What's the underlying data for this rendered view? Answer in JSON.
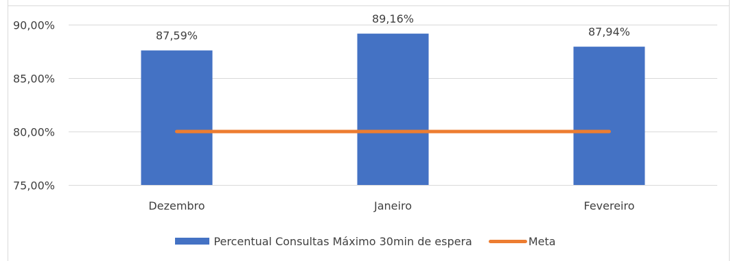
{
  "chart_data": {
    "type": "bar",
    "title": "",
    "xlabel": "",
    "ylabel": "",
    "categories": [
      "Dezembro",
      "Janeiro",
      "Fevereiro"
    ],
    "ylim": [
      75,
      90
    ],
    "yticks": [
      90,
      85,
      80,
      75
    ],
    "ytick_labels": [
      "90,00%",
      "85,00%",
      "80,00%",
      "75,00%"
    ],
    "grid": true,
    "legend_position": "bottom",
    "series": [
      {
        "name": "Percentual Consultas Máximo 30min de espera",
        "kind": "bar",
        "color": "#4472C4",
        "values": [
          87.59,
          89.16,
          87.94
        ],
        "labels": [
          "87,59%",
          "89,16%",
          "87,94%"
        ]
      },
      {
        "name": "Meta",
        "kind": "line",
        "color": "#ED7D31",
        "values": [
          80,
          80,
          80
        ]
      }
    ]
  }
}
